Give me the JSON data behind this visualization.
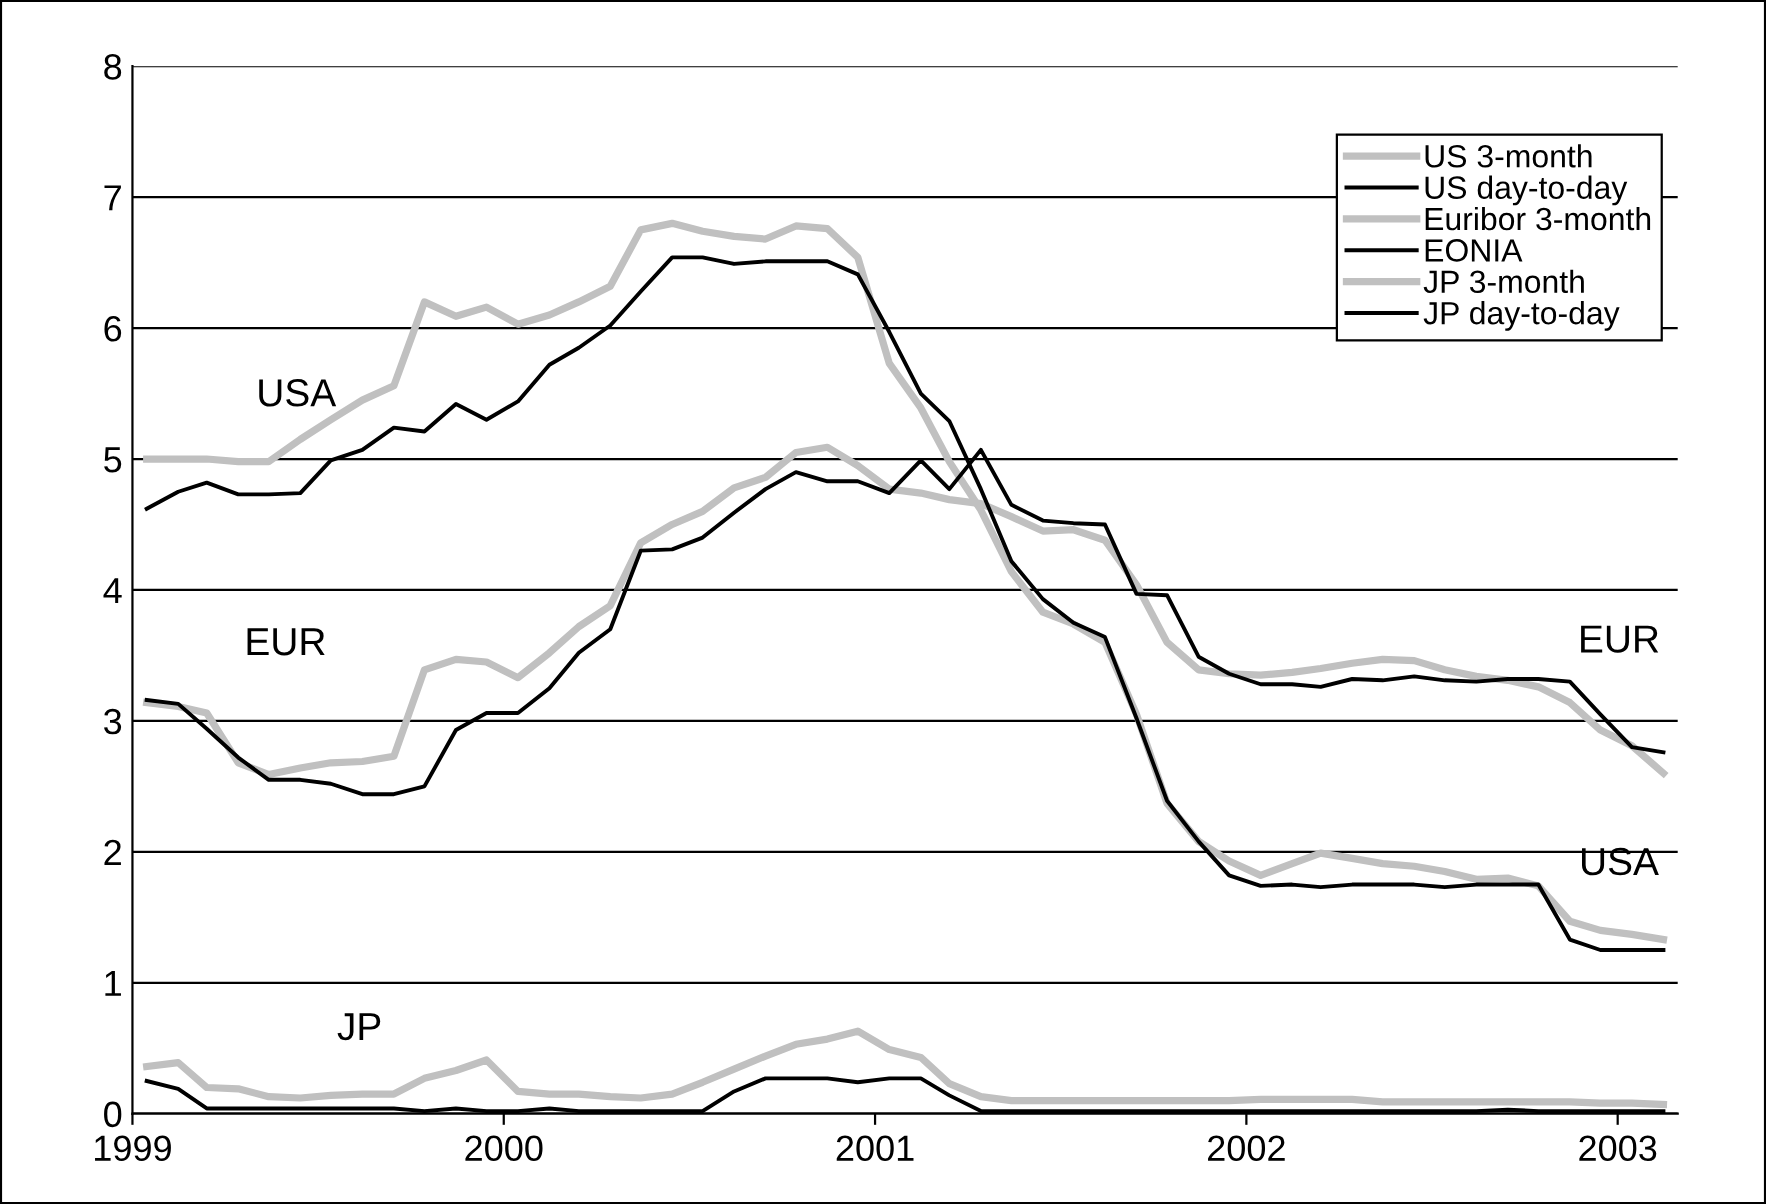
{
  "chart_data": {
    "type": "line",
    "x": [
      "1999-01-15",
      "1999-02-15",
      "1999-03-15",
      "1999-04-15",
      "1999-05-15",
      "1999-06-15",
      "1999-07-15",
      "1999-08-15",
      "1999-09-15",
      "1999-10-15",
      "1999-11-15",
      "1999-12-15",
      "2000-01-15",
      "2000-02-15",
      "2000-03-15",
      "2000-04-15",
      "2000-05-15",
      "2000-06-15",
      "2000-07-15",
      "2000-08-15",
      "2000-09-15",
      "2000-10-15",
      "2000-11-15",
      "2000-12-15",
      "2001-01-15",
      "2001-02-15",
      "2001-03-15",
      "2001-04-15",
      "2001-05-15",
      "2001-06-15",
      "2001-07-15",
      "2001-08-15",
      "2001-09-15",
      "2001-10-15",
      "2001-11-15",
      "2001-12-15",
      "2002-01-15",
      "2002-02-15",
      "2002-03-15",
      "2002-04-15",
      "2002-05-15",
      "2002-06-15",
      "2002-07-15",
      "2002-08-15",
      "2002-09-15",
      "2002-10-15",
      "2002-11-15",
      "2002-12-15",
      "2003-01-15",
      "2003-02-15"
    ],
    "series": [
      {
        "name": "US 3-month",
        "color": "#c0c0c0",
        "values": [
          5.0,
          5.0,
          5.0,
          4.98,
          4.98,
          5.15,
          5.3,
          5.45,
          5.56,
          6.2,
          6.09,
          6.16,
          6.03,
          6.1,
          6.2,
          6.32,
          6.75,
          6.8,
          6.74,
          6.7,
          6.68,
          6.78,
          6.76,
          6.54,
          5.73,
          5.39,
          4.98,
          4.61,
          4.14,
          3.83,
          3.74,
          3.6,
          3.05,
          2.37,
          2.08,
          1.93,
          1.82,
          1.91,
          1.99,
          1.95,
          1.91,
          1.89,
          1.85,
          1.79,
          1.8,
          1.74,
          1.47,
          1.4,
          1.37,
          1.33
        ]
      },
      {
        "name": "US day-to-day",
        "color": "#000000",
        "values": [
          4.62,
          4.75,
          4.82,
          4.73,
          4.73,
          4.74,
          4.99,
          5.07,
          5.24,
          5.21,
          5.42,
          5.3,
          5.44,
          5.72,
          5.85,
          6.02,
          6.28,
          6.54,
          6.54,
          6.49,
          6.51,
          6.51,
          6.51,
          6.41,
          5.97,
          5.5,
          5.29,
          4.77,
          4.22,
          3.93,
          3.75,
          3.64,
          3.02,
          2.39,
          2.08,
          1.82,
          1.74,
          1.75,
          1.73,
          1.75,
          1.75,
          1.75,
          1.73,
          1.75,
          1.75,
          1.75,
          1.33,
          1.25,
          1.25,
          1.25
        ]
      },
      {
        "name": "Euribor 3-month",
        "color": "#c0c0c0",
        "values": [
          3.14,
          3.11,
          3.06,
          2.68,
          2.59,
          2.64,
          2.68,
          2.69,
          2.73,
          3.39,
          3.47,
          3.45,
          3.33,
          3.52,
          3.72,
          3.88,
          4.36,
          4.5,
          4.6,
          4.78,
          4.86,
          5.05,
          5.09,
          4.95,
          4.77,
          4.74,
          4.69,
          4.66,
          4.56,
          4.45,
          4.46,
          4.38,
          4.04,
          3.6,
          3.39,
          3.36,
          3.35,
          3.37,
          3.4,
          3.44,
          3.47,
          3.46,
          3.39,
          3.34,
          3.31,
          3.26,
          3.14,
          2.93,
          2.81,
          2.6
        ]
      },
      {
        "name": "EONIA",
        "color": "#000000",
        "values": [
          3.16,
          3.13,
          2.94,
          2.72,
          2.55,
          2.55,
          2.52,
          2.44,
          2.44,
          2.5,
          2.93,
          3.06,
          3.06,
          3.25,
          3.52,
          3.7,
          4.3,
          4.31,
          4.4,
          4.59,
          4.77,
          4.9,
          4.83,
          4.83,
          4.74,
          4.99,
          4.77,
          5.07,
          4.65,
          4.53,
          4.51,
          4.5,
          3.97,
          3.96,
          3.49,
          3.36,
          3.28,
          3.28,
          3.26,
          3.32,
          3.31,
          3.34,
          3.31,
          3.3,
          3.32,
          3.32,
          3.3,
          3.05,
          2.8,
          2.76
        ]
      },
      {
        "name": "JP 3-month",
        "color": "#c0c0c0",
        "values": [
          0.36,
          0.39,
          0.2,
          0.19,
          0.13,
          0.12,
          0.14,
          0.15,
          0.15,
          0.27,
          0.33,
          0.41,
          0.17,
          0.15,
          0.15,
          0.13,
          0.12,
          0.15,
          0.24,
          0.34,
          0.44,
          0.53,
          0.57,
          0.63,
          0.49,
          0.43,
          0.23,
          0.13,
          0.1,
          0.1,
          0.1,
          0.1,
          0.1,
          0.1,
          0.1,
          0.1,
          0.11,
          0.11,
          0.11,
          0.11,
          0.09,
          0.09,
          0.09,
          0.09,
          0.09,
          0.09,
          0.09,
          0.08,
          0.08,
          0.07
        ]
      },
      {
        "name": "JP day-to-day",
        "color": "#000000",
        "values": [
          0.25,
          0.19,
          0.04,
          0.04,
          0.04,
          0.04,
          0.04,
          0.04,
          0.04,
          0.02,
          0.04,
          0.02,
          0.02,
          0.04,
          0.02,
          0.02,
          0.02,
          0.02,
          0.02,
          0.17,
          0.27,
          0.27,
          0.27,
          0.24,
          0.27,
          0.27,
          0.14,
          0.02,
          0.02,
          0.02,
          0.02,
          0.02,
          0.02,
          0.02,
          0.02,
          0.02,
          0.02,
          0.02,
          0.02,
          0.02,
          0.02,
          0.02,
          0.02,
          0.02,
          0.03,
          0.02,
          0.02,
          0.02,
          0.02,
          0.02
        ]
      }
    ],
    "xlim": [
      "1999-01-01",
      "2003-03-01"
    ],
    "xticks": [
      {
        "value": "1999-01-01",
        "label": "1999"
      },
      {
        "value": "2000-01-01",
        "label": "2000"
      },
      {
        "value": "2001-01-01",
        "label": "2001"
      },
      {
        "value": "2002-01-01",
        "label": "2002"
      },
      {
        "value": "2003-01-01",
        "label": "2003"
      }
    ],
    "ylim": [
      0,
      8
    ],
    "yticks": [
      0,
      1,
      2,
      3,
      4,
      5,
      6,
      7,
      8
    ],
    "grid": "y",
    "legend": "top right",
    "annotations": [
      "USA",
      "EUR",
      "JP",
      "EUR",
      "USA"
    ]
  }
}
